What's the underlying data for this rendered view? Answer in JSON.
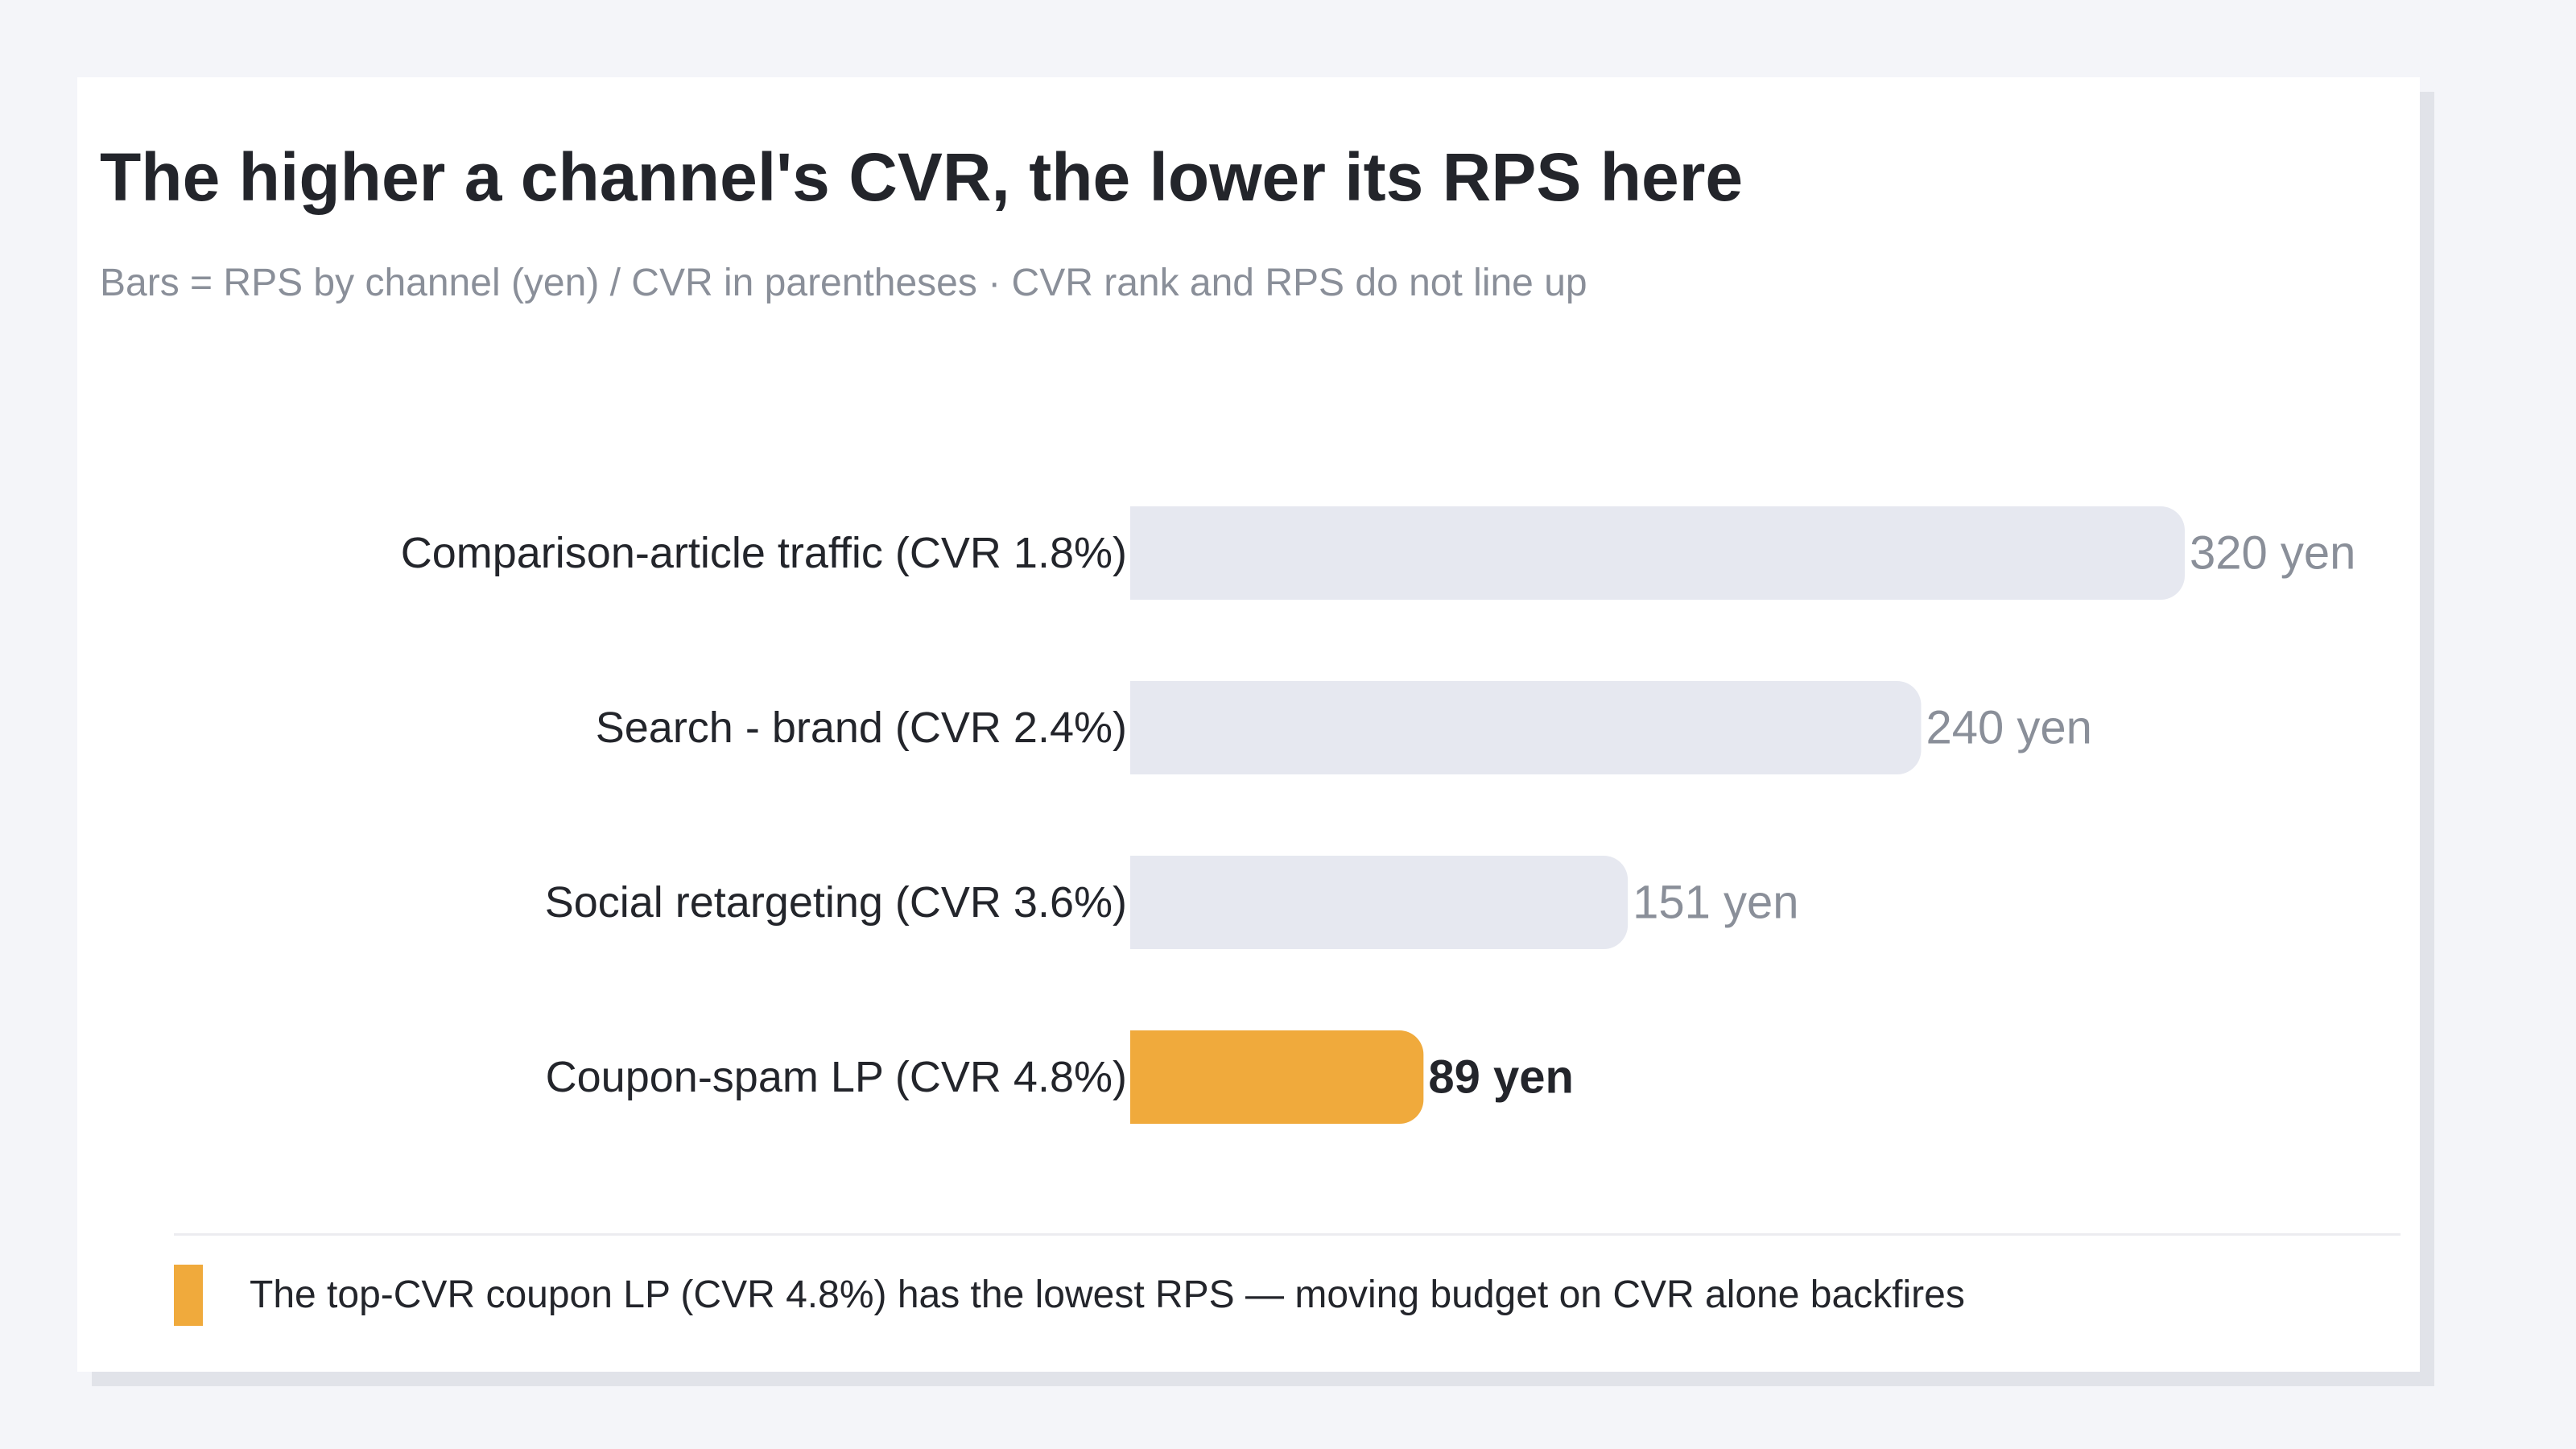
{
  "title": "The higher a channel's CVR, the lower its RPS here",
  "subtitle": "Bars = RPS by channel (yen) / CVR in parentheses · CVR rank and RPS do not line up",
  "colors": {
    "background": "#f4f5f9",
    "card": "#ffffff",
    "bar_default": "#e6e8f0",
    "bar_highlight": "#f0aa3c",
    "label_text": "#23252b",
    "value_muted": "#8a8f99"
  },
  "chart_data": {
    "type": "bar",
    "orientation": "horizontal",
    "title": "The higher a channel's CVR, the lower its RPS here",
    "subtitle": "Bars = RPS by channel (yen) / CVR in parentheses · CVR rank and RPS do not line up",
    "categories": [
      "Comparison-article traffic (CVR 1.8%)",
      "Search - brand (CVR 2.4%)",
      "Social retargeting (CVR 3.6%)",
      "Coupon-spam LP (CVR 4.8%)"
    ],
    "values": [
      320,
      240,
      151,
      89
    ],
    "value_labels": [
      "320 yen",
      "240 yen",
      "151 yen",
      "89 yen"
    ],
    "highlight_index": 3,
    "unit": "yen",
    "xlim": [
      0,
      320
    ],
    "grid": false,
    "axes_visible": false
  },
  "legend": {
    "text": "The top-CVR coupon LP (CVR 4.8%) has the lowest RPS — moving budget on CVR alone backfires"
  }
}
